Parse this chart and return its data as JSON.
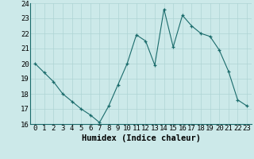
{
  "xlabel": "Humidex (Indice chaleur)",
  "x": [
    0,
    1,
    2,
    3,
    4,
    5,
    6,
    7,
    8,
    9,
    10,
    11,
    12,
    13,
    14,
    15,
    16,
    17,
    18,
    19,
    20,
    21,
    22,
    23
  ],
  "y": [
    20.0,
    19.4,
    18.8,
    18.0,
    17.5,
    17.0,
    16.6,
    16.1,
    17.2,
    18.6,
    20.0,
    21.9,
    21.5,
    19.9,
    23.6,
    21.1,
    23.2,
    22.5,
    22.0,
    21.8,
    20.9,
    19.5,
    17.6,
    17.2
  ],
  "line_color": "#1a6b6b",
  "marker": "+",
  "bg_color": "#cce9e9",
  "grid_color": "#aed4d4",
  "ylim": [
    16,
    24
  ],
  "yticks": [
    16,
    17,
    18,
    19,
    20,
    21,
    22,
    23,
    24
  ],
  "xticks": [
    0,
    1,
    2,
    3,
    4,
    5,
    6,
    7,
    8,
    9,
    10,
    11,
    12,
    13,
    14,
    15,
    16,
    17,
    18,
    19,
    20,
    21,
    22,
    23
  ],
  "tick_label_fontsize": 6.5,
  "xlabel_fontsize": 7.5,
  "axis_bg": "#cce9e9",
  "fig_bg": "#cce9e9"
}
